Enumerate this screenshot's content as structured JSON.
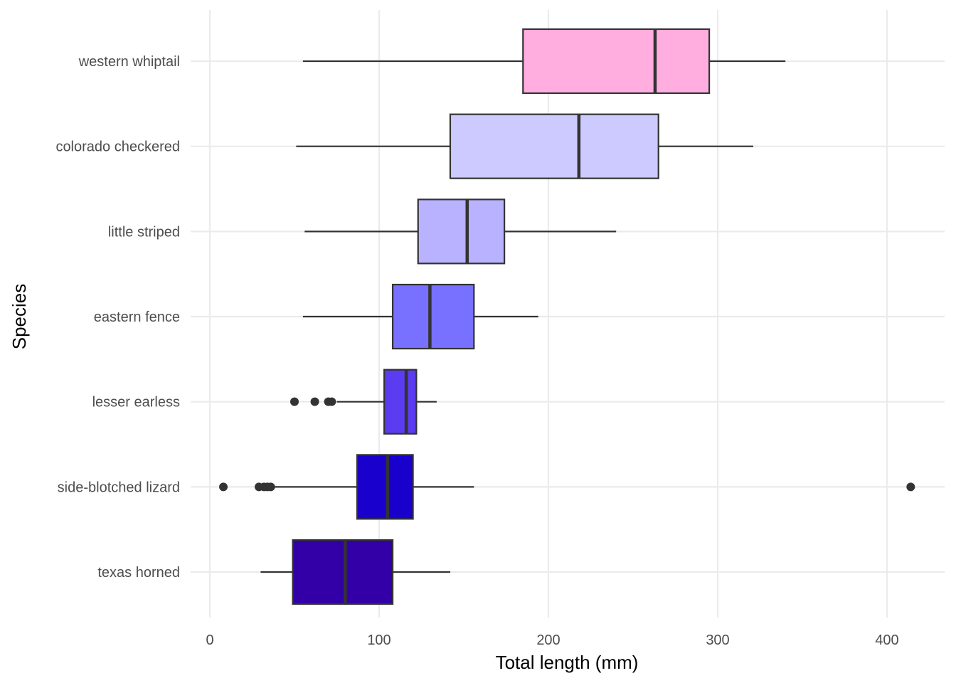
{
  "chart_data": {
    "type": "boxplot",
    "orientation": "horizontal",
    "title": "",
    "xlabel": "Total length (mm)",
    "ylabel": "Species",
    "xlim": [
      -10,
      435
    ],
    "x_ticks": [
      0,
      100,
      200,
      300,
      400
    ],
    "x_tick_labels": [
      "0",
      "100",
      "200",
      "300",
      "400"
    ],
    "grid": true,
    "legend": "none",
    "categories": [
      "western whiptail",
      "colorado checkered",
      "little striped",
      "eastern fence",
      "lesser earless",
      "side-blotched lizard",
      "texas horned"
    ],
    "series": [
      {
        "category": "western whiptail",
        "whisker_low": 55,
        "q1": 185,
        "median": 263,
        "q3": 295,
        "whisker_high": 340,
        "outliers": [],
        "color": "#ffaedf"
      },
      {
        "category": "colorado checkered",
        "whisker_low": 51,
        "q1": 142,
        "median": 218,
        "q3": 265,
        "whisker_high": 321,
        "outliers": [],
        "color": "#cccaff"
      },
      {
        "category": "little striped",
        "whisker_low": 56,
        "q1": 123,
        "median": 152,
        "q3": 174,
        "whisker_high": 240,
        "outliers": [],
        "color": "#b8b2ff"
      },
      {
        "category": "eastern fence",
        "whisker_low": 55,
        "q1": 108,
        "median": 130,
        "q3": 156,
        "whisker_high": 194,
        "outliers": [],
        "color": "#7870ff"
      },
      {
        "category": "lesser earless",
        "whisker_low": 75,
        "q1": 103,
        "median": 116,
        "q3": 122,
        "whisker_high": 134,
        "outliers": [
          50,
          62,
          70,
          72
        ],
        "color": "#5b3cf0"
      },
      {
        "category": "side-blotched lizard",
        "whisker_low": 38,
        "q1": 87,
        "median": 105,
        "q3": 120,
        "whisker_high": 156,
        "outliers": [
          8,
          29,
          32,
          34,
          36,
          414
        ],
        "color": "#1a00cc"
      },
      {
        "category": "texas horned",
        "whisker_low": 30,
        "q1": 49,
        "median": 80,
        "q3": 108,
        "whisker_high": 142,
        "outliers": [],
        "color": "#3300a8"
      }
    ]
  }
}
